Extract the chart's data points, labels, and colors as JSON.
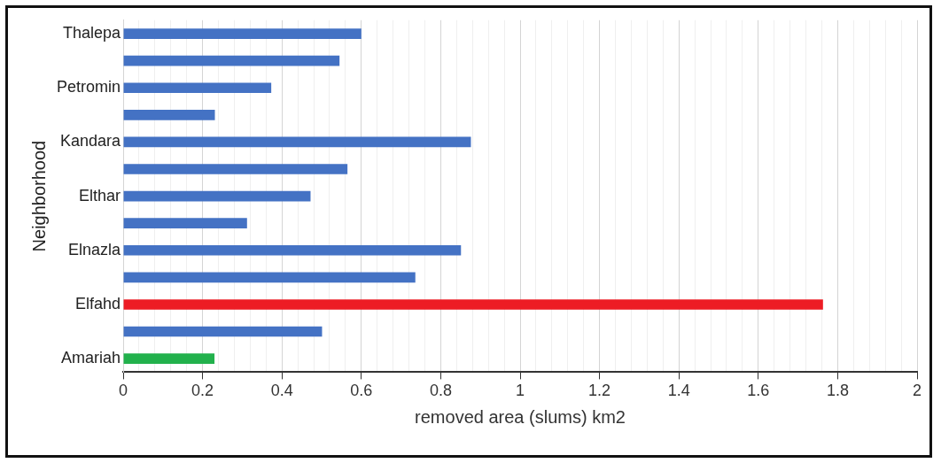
{
  "chart_data": {
    "type": "bar",
    "orientation": "horizontal",
    "categories": [
      "Thalepa",
      null,
      "Petromin",
      null,
      "Kandara",
      null,
      "Elthar",
      null,
      "Elnazla",
      null,
      "Elfahd",
      null,
      "Amariah"
    ],
    "values": [
      0.6,
      0.545,
      0.373,
      0.231,
      0.876,
      0.565,
      0.472,
      0.312,
      0.851,
      0.736,
      1.763,
      0.501,
      0.23
    ],
    "colors": [
      "#4472c4",
      "#4472c4",
      "#4472c4",
      "#4472c4",
      "#4472c4",
      "#4472c4",
      "#4472c4",
      "#4472c4",
      "#4472c4",
      "#4472c4",
      "#ed1c24",
      "#4472c4",
      "#22b14c"
    ],
    "xlabel": "removed area (slums) km2",
    "ylabel": "Neighborhood",
    "xlim": [
      0,
      2
    ],
    "xticks": [
      0,
      {
        "value": 0.04,
        "label": null
      },
      {
        "value": 0.08,
        "label": null
      },
      {
        "value": 0.12,
        "label": null
      },
      {
        "value": 0.16,
        "label": null
      },
      0.2,
      {
        "value": 0.24,
        "label": null
      },
      {
        "value": 0.28,
        "label": null
      },
      {
        "value": 0.32,
        "label": null
      },
      {
        "value": 0.36,
        "label": null
      },
      0.4,
      {
        "value": 0.44,
        "label": null
      },
      {
        "value": 0.48,
        "label": null
      },
      {
        "value": 0.52,
        "label": null
      },
      {
        "value": 0.56,
        "label": null
      },
      0.6,
      {
        "value": 0.64,
        "label": null
      },
      {
        "value": 0.68,
        "label": null
      },
      {
        "value": 0.72,
        "label": null
      },
      {
        "value": 0.76,
        "label": null
      },
      0.8,
      {
        "value": 0.84,
        "label": null
      },
      {
        "value": 0.88,
        "label": null
      },
      {
        "value": 0.92,
        "label": null
      },
      {
        "value": 0.96,
        "label": null
      },
      1,
      {
        "value": 1.04,
        "label": null
      },
      {
        "value": 1.08,
        "label": null
      },
      {
        "value": 1.12,
        "label": null
      },
      {
        "value": 1.16,
        "label": null
      },
      1.2,
      {
        "value": 1.24,
        "label": null
      },
      {
        "value": 1.28,
        "label": null
      },
      {
        "value": 1.32,
        "label": null
      },
      {
        "value": 1.36,
        "label": null
      },
      1.4,
      {
        "value": 1.44,
        "label": null
      },
      {
        "value": 1.48,
        "label": null
      },
      {
        "value": 1.52,
        "label": null
      },
      {
        "value": 1.56,
        "label": null
      },
      1.6,
      {
        "value": 1.64,
        "label": null
      },
      {
        "value": 1.68,
        "label": null
      },
      {
        "value": 1.72,
        "label": null
      },
      {
        "value": 1.76,
        "label": null
      },
      1.8,
      {
        "value": 1.84,
        "label": null
      },
      {
        "value": 1.88,
        "label": null
      },
      {
        "value": 1.92,
        "label": null
      },
      {
        "value": 1.96,
        "label": null
      },
      2
    ],
    "grid": "x",
    "legend": false
  }
}
